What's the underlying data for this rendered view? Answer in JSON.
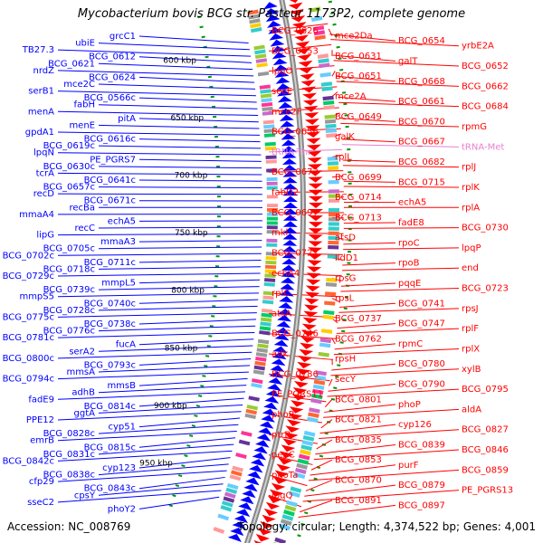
{
  "title": "Mycobacterium bovis BCG str. Pasteur 1173P2, complete genome",
  "footer": {
    "accession": "Accession: NC_008769",
    "summary": "Topology: circular; Length: 4,374,522 bp; Genes: 4,001"
  },
  "colors": {
    "forward": "#ff0000",
    "reverse": "#0000ff",
    "rna": "#e87fd0",
    "backbone": "#888888",
    "tick": "#009900"
  },
  "ticks": [
    "600 kbp",
    "650 kbp",
    "700 kbp",
    "750 kbp",
    "800 kbp",
    "850 kbp",
    "900 kbp",
    "950 kbp"
  ],
  "reverse_labels": [
    "grcC1",
    "ubiE",
    "TB27.3",
    "BCG_0612",
    "BCG_0621",
    "nrdZ",
    "BCG_0624",
    "mce2C",
    "serB1",
    "BCG_0566c",
    "fabH",
    "menA",
    "pitA",
    "menE",
    "gpdA1",
    "BCG_0616c",
    "BCG_0619c",
    "lpqN",
    "PE_PGRS7",
    "BCG_0630c",
    "tcrA",
    "BCG_0641c",
    "BCG_0657c",
    "recD",
    "BCG_0671c",
    "recBa",
    "mmaA4",
    "echA5",
    "recC",
    "lipG",
    "mmaA3",
    "BCG_0705c",
    "BCG_0702c",
    "BCG_0711c",
    "BCG_0718c",
    "BCG_0729c",
    "mmpL5",
    "BCG_0739c",
    "mmpS5",
    "BCG_0740c",
    "BCG_0728c",
    "BCG_0775c",
    "BCG_0738c",
    "BCG_0776c",
    "BCG_0781c",
    "fucA",
    "serA2",
    "BCG_0800c",
    "BCG_0793c",
    "mmsA",
    "BCG_0794c",
    "mmsB",
    "adhB",
    "fadE9",
    "BCG_0814c",
    "ggtA",
    "PPE12",
    "cyp51",
    "BCG_0828c",
    "emrB",
    "BCG_0815c",
    "BCG_0831c",
    "BCG_0842c",
    "cyp123",
    "BCG_0838c",
    "cfp29",
    "BCG_0843c",
    "cpsY",
    "sseC2",
    "phoY2"
  ],
  "forward_labels": [
    "BCG_0626",
    "mce2Da",
    "BCG_0654",
    "yrbE2A",
    "BCG_0653",
    "BCG_0631",
    "galT",
    "BCG_0652",
    "lpqO",
    "BCG_0651",
    "BCG_0668",
    "BCG_0662",
    "secE",
    "mce2A",
    "BCG_0661",
    "BCG_0684",
    "mce2F",
    "BCG_0649",
    "BCG_0670",
    "rpmG",
    "BCG_0656",
    "galK",
    "BCG_0667",
    "tRNA-Met",
    "tRNA-Thr",
    "rplL",
    "BCG_0682",
    "rplJ",
    "BCG_0673",
    "BCG_0699",
    "BCG_0715",
    "rplK",
    "fabD2",
    "BCG_0714",
    "echA5",
    "rplA",
    "BCG_0697",
    "BCG_0713",
    "fadE8",
    "BCG_0730",
    "mkl",
    "atsD",
    "rpoC",
    "lpqP",
    "BCG_0727",
    "lldD1",
    "rpoB",
    "end",
    "echA4",
    "rpsG",
    "pqqE",
    "BCG_0723",
    "rplC",
    "rpsL",
    "BCG_0741",
    "rpsJ",
    "atsA",
    "BCG_0737",
    "BCG_0747",
    "rplF",
    "BCG_0746",
    "BCG_0762",
    "rpmC",
    "rplX",
    "adk",
    "rpsH",
    "BCG_0780",
    "xylB",
    "BCG_0786",
    "secY",
    "BCG_0790",
    "BCG_0795",
    "PE_PGRS11",
    "BCG_0801",
    "phoP",
    "aldA",
    "phoR",
    "BCG_0821",
    "cyp126",
    "BCG_0827",
    "ptrB",
    "BCG_0835",
    "BCG_0839",
    "BCG_0846",
    "pepC",
    "BCG_0853",
    "purF",
    "BCG_0859",
    "phoTa",
    "BCG_0870",
    "BCG_0879",
    "PE_PGRS13",
    "lpqQ",
    "BCG_0891",
    "BCG_0897"
  ]
}
